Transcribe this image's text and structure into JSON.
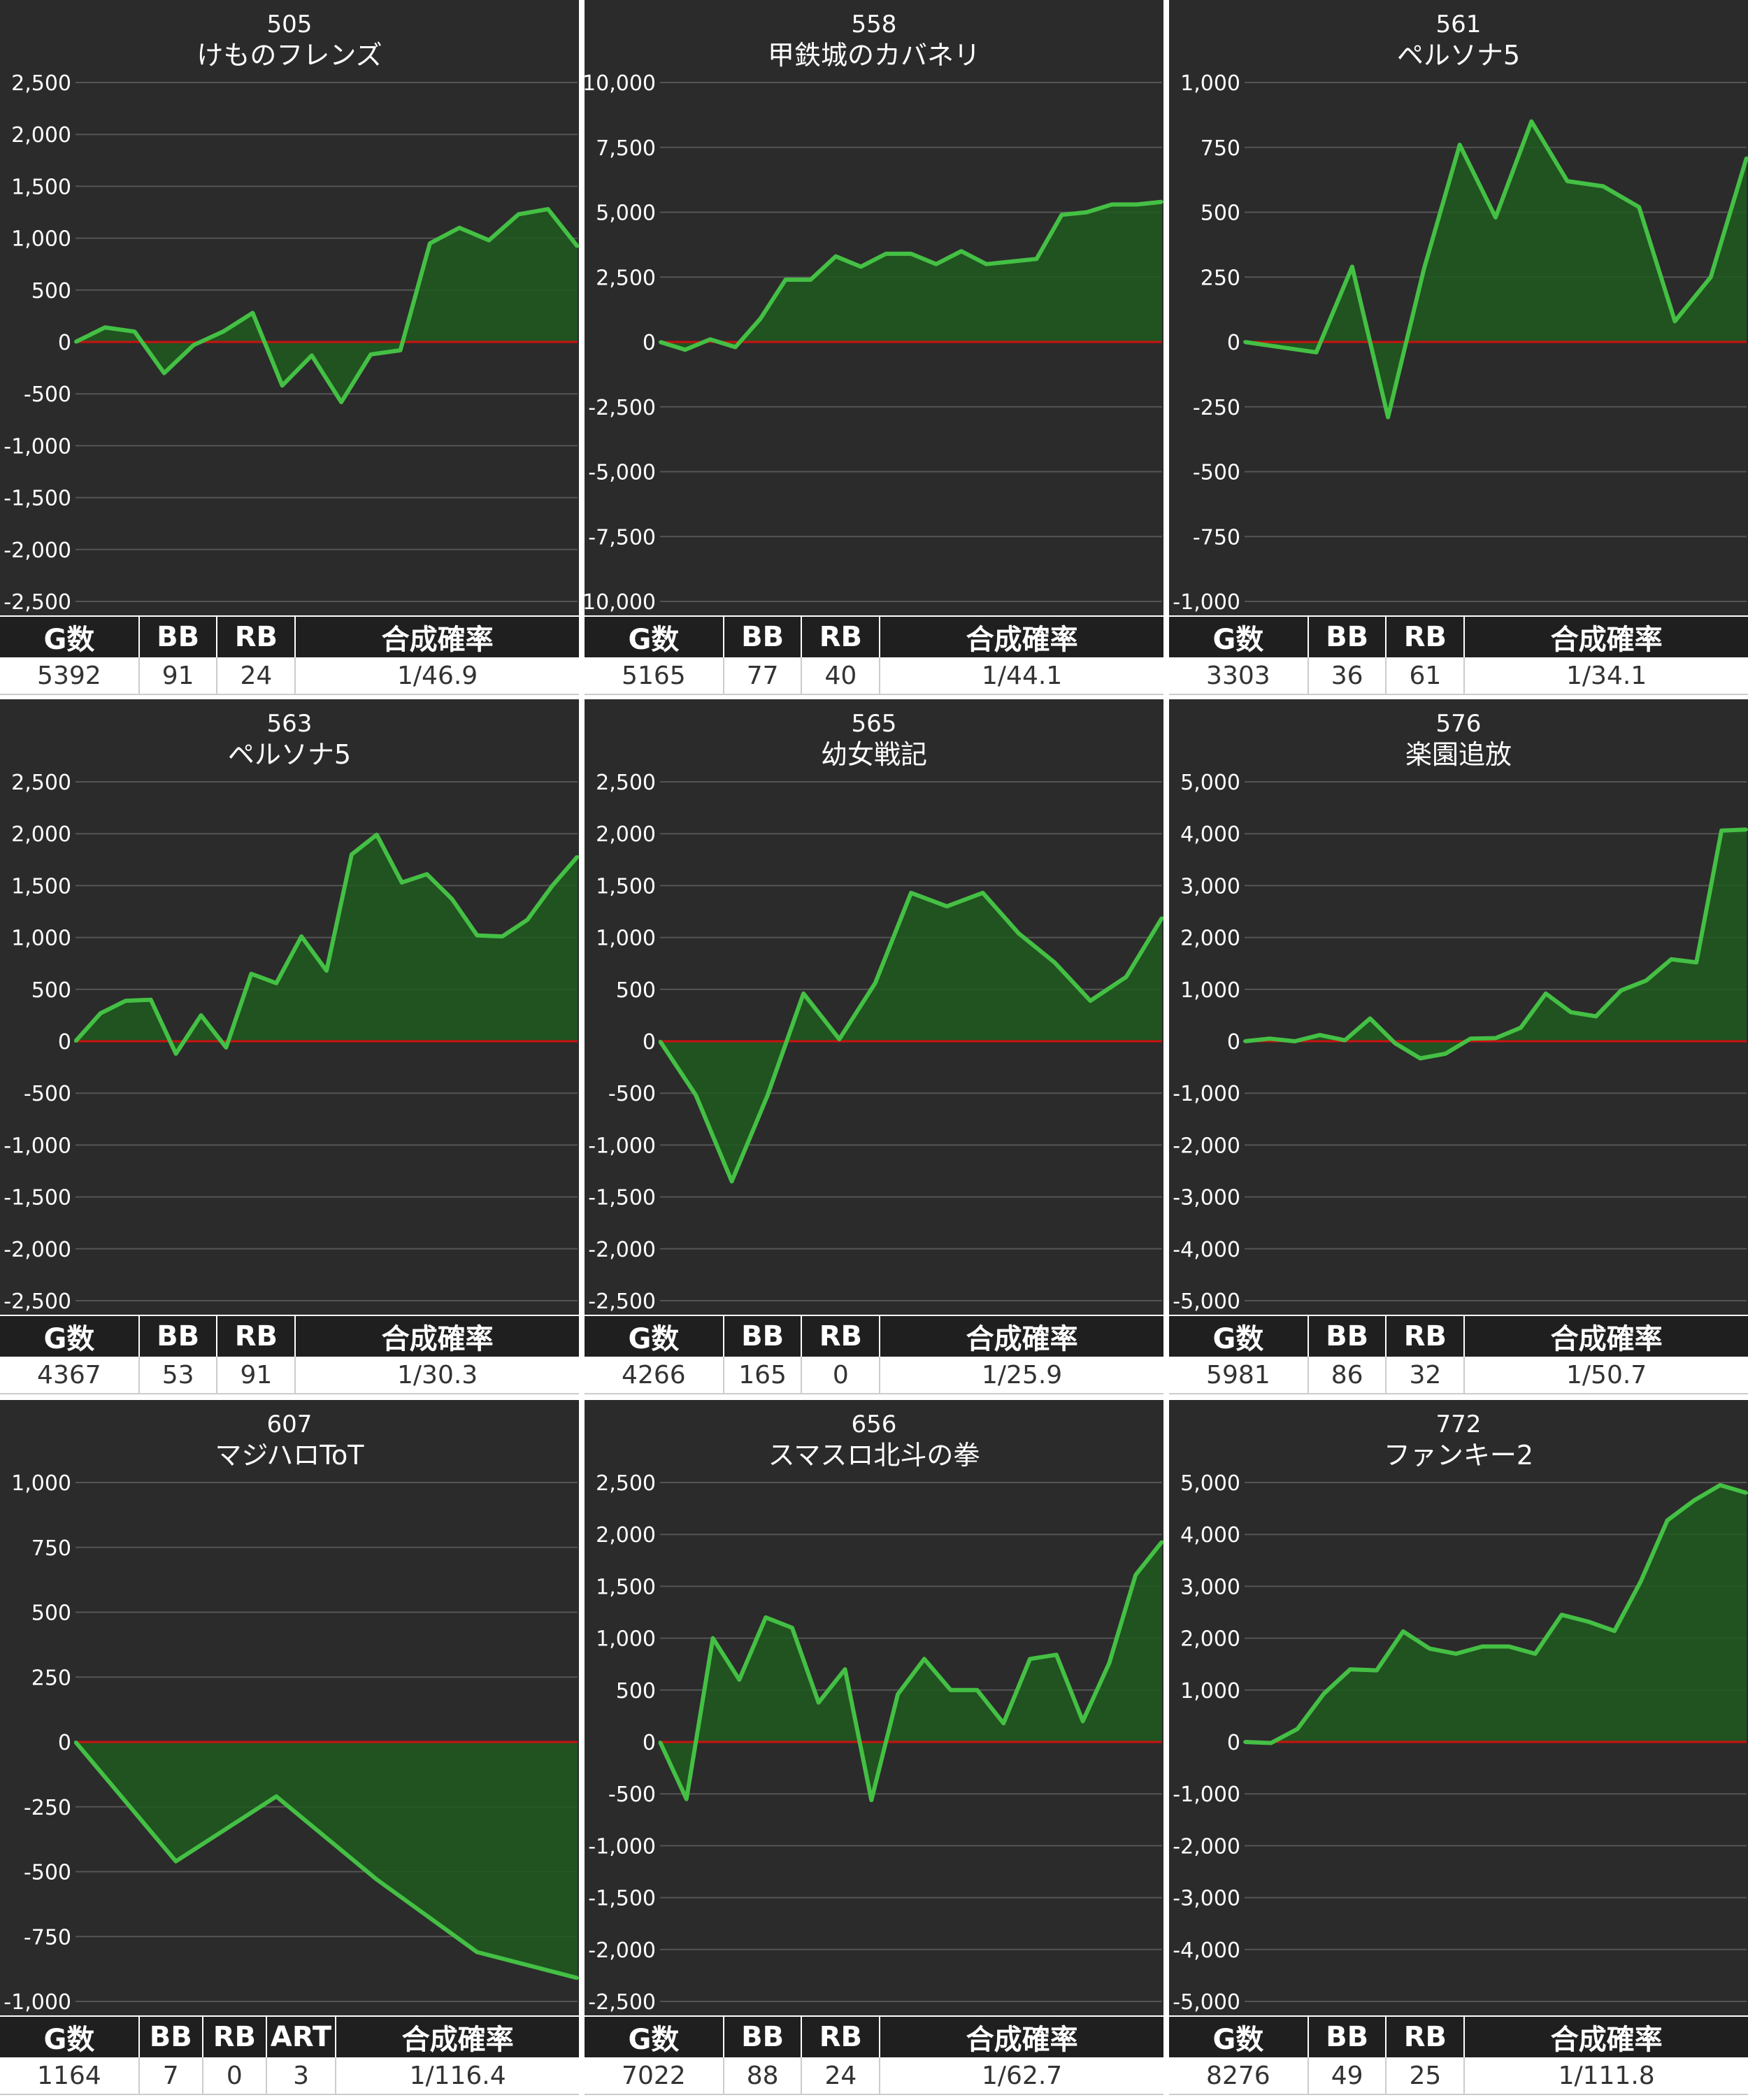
{
  "colors": {
    "background": "#2b2b2b",
    "grid": "#555555",
    "zero_line": "#cc1111",
    "line": "#44c044",
    "fill": "#1f5a1f",
    "label": "#ffffff"
  },
  "panels": [
    {
      "id": "505",
      "name": "けものフレンズ",
      "stats": {
        "headers": [
          "G数",
          "BB",
          "RB",
          "合成確率"
        ],
        "values": [
          "5392",
          "91",
          "24",
          "1/46.9"
        ]
      },
      "chart_data": {
        "type": "area",
        "ylim": [
          -2500,
          2500
        ],
        "yticks": [
          {
            "v": 2500,
            "l": "2,500"
          },
          {
            "v": 2000,
            "l": "2,000"
          },
          {
            "v": 1500,
            "l": "1,500"
          },
          {
            "v": 1000,
            "l": "1,000"
          },
          {
            "v": 500,
            "l": "500"
          },
          {
            "v": 0,
            "l": "0"
          },
          {
            "v": -500,
            "l": "-500"
          },
          {
            "v": -1000,
            "l": "-1,000"
          },
          {
            "v": -1500,
            "l": "-1,500"
          },
          {
            "v": -2000,
            "l": "-2,000"
          },
          {
            "v": -2500,
            "l": "-2,500"
          }
        ],
        "values": [
          0,
          140,
          100,
          -300,
          -30,
          100,
          280,
          -420,
          -130,
          -580,
          -120,
          -80,
          950,
          1100,
          980,
          1230,
          1280,
          920
        ]
      }
    },
    {
      "id": "558",
      "name": "甲鉄城のカバネリ",
      "stats": {
        "headers": [
          "G数",
          "BB",
          "RB",
          "合成確率"
        ],
        "values": [
          "5165",
          "77",
          "40",
          "1/44.1"
        ]
      },
      "chart_data": {
        "type": "area",
        "ylim": [
          -10000,
          10000
        ],
        "yticks": [
          {
            "v": 10000,
            "l": "10,000"
          },
          {
            "v": 7500,
            "l": "7,500"
          },
          {
            "v": 5000,
            "l": "5,000"
          },
          {
            "v": 2500,
            "l": "2,500"
          },
          {
            "v": 0,
            "l": "0"
          },
          {
            "v": -2500,
            "l": "-2,500"
          },
          {
            "v": -5000,
            "l": "-5,000"
          },
          {
            "v": -7500,
            "l": "-7,500"
          },
          {
            "v": -10000,
            "l": "-10,000"
          }
        ],
        "values": [
          0,
          -300,
          100,
          -200,
          900,
          2400,
          2400,
          3300,
          2900,
          3400,
          3400,
          3000,
          3500,
          3000,
          3100,
          3200,
          4900,
          5000,
          5300,
          5300,
          5400
        ]
      }
    },
    {
      "id": "561",
      "name": "ペルソナ5",
      "stats": {
        "headers": [
          "G数",
          "BB",
          "RB",
          "合成確率"
        ],
        "values": [
          "3303",
          "36",
          "61",
          "1/34.1"
        ]
      },
      "chart_data": {
        "type": "area",
        "ylim": [
          -1000,
          1000
        ],
        "yticks": [
          {
            "v": 1000,
            "l": "1,000"
          },
          {
            "v": 750,
            "l": "750"
          },
          {
            "v": 500,
            "l": "500"
          },
          {
            "v": 250,
            "l": "250"
          },
          {
            "v": 0,
            "l": "0"
          },
          {
            "v": -250,
            "l": "-250"
          },
          {
            "v": -500,
            "l": "-500"
          },
          {
            "v": -750,
            "l": "-750"
          },
          {
            "v": -1000,
            "l": "-1,000"
          }
        ],
        "values": [
          0,
          -20,
          -40,
          290,
          -290,
          280,
          760,
          480,
          850,
          620,
          600,
          520,
          80,
          250,
          710
        ]
      }
    },
    {
      "id": "563",
      "name": "ペルソナ5",
      "stats": {
        "headers": [
          "G数",
          "BB",
          "RB",
          "合成確率"
        ],
        "values": [
          "4367",
          "53",
          "91",
          "1/30.3"
        ]
      },
      "chart_data": {
        "type": "area",
        "ylim": [
          -2500,
          2500
        ],
        "yticks": [
          {
            "v": 2500,
            "l": "2,500"
          },
          {
            "v": 2000,
            "l": "2,000"
          },
          {
            "v": 1500,
            "l": "1,500"
          },
          {
            "v": 1000,
            "l": "1,000"
          },
          {
            "v": 500,
            "l": "500"
          },
          {
            "v": 0,
            "l": "0"
          },
          {
            "v": -500,
            "l": "-500"
          },
          {
            "v": -1000,
            "l": "-1,000"
          },
          {
            "v": -1500,
            "l": "-1,500"
          },
          {
            "v": -2000,
            "l": "-2,000"
          },
          {
            "v": -2500,
            "l": "-2,500"
          }
        ],
        "values": [
          0,
          270,
          390,
          400,
          -120,
          250,
          -60,
          650,
          560,
          1010,
          680,
          1800,
          1990,
          1530,
          1610,
          1370,
          1020,
          1010,
          1170,
          1500,
          1780
        ]
      }
    },
    {
      "id": "565",
      "name": "幼女戦記",
      "stats": {
        "headers": [
          "G数",
          "BB",
          "RB",
          "合成確率"
        ],
        "values": [
          "4266",
          "165",
          "0",
          "1/25.9"
        ]
      },
      "chart_data": {
        "type": "area",
        "ylim": [
          -2500,
          2500
        ],
        "yticks": [
          {
            "v": 2500,
            "l": "2,500"
          },
          {
            "v": 2000,
            "l": "2,000"
          },
          {
            "v": 1500,
            "l": "1,500"
          },
          {
            "v": 1000,
            "l": "1,000"
          },
          {
            "v": 500,
            "l": "500"
          },
          {
            "v": 0,
            "l": "0"
          },
          {
            "v": -500,
            "l": "-500"
          },
          {
            "v": -1000,
            "l": "-1,000"
          },
          {
            "v": -1500,
            "l": "-1,500"
          },
          {
            "v": -2000,
            "l": "-2,000"
          },
          {
            "v": -2500,
            "l": "-2,500"
          }
        ],
        "values": [
          0,
          -520,
          -1350,
          -520,
          460,
          20,
          560,
          1430,
          1300,
          1430,
          1040,
          760,
          390,
          620,
          1190
        ]
      }
    },
    {
      "id": "576",
      "name": "楽園追放",
      "stats": {
        "headers": [
          "G数",
          "BB",
          "RB",
          "合成確率"
        ],
        "values": [
          "5981",
          "86",
          "32",
          "1/50.7"
        ]
      },
      "chart_data": {
        "type": "area",
        "ylim": [
          -5000,
          5000
        ],
        "yticks": [
          {
            "v": 5000,
            "l": "5,000"
          },
          {
            "v": 4000,
            "l": "4,000"
          },
          {
            "v": 3000,
            "l": "3,000"
          },
          {
            "v": 2000,
            "l": "2,000"
          },
          {
            "v": 1000,
            "l": "1,000"
          },
          {
            "v": 0,
            "l": "0"
          },
          {
            "v": -1000,
            "l": "-1,000"
          },
          {
            "v": -2000,
            "l": "-2,000"
          },
          {
            "v": -3000,
            "l": "-3,000"
          },
          {
            "v": -4000,
            "l": "-4,000"
          },
          {
            "v": -5000,
            "l": "-5,000"
          }
        ],
        "values": [
          0,
          50,
          0,
          120,
          20,
          440,
          -40,
          -330,
          -240,
          50,
          60,
          260,
          920,
          560,
          480,
          980,
          1170,
          1580,
          1520,
          4060,
          4080
        ]
      }
    },
    {
      "id": "607",
      "name": "マジハロToT",
      "stats": {
        "headers": [
          "G数",
          "BB",
          "RB",
          "ART",
          "合成確率"
        ],
        "values": [
          "1164",
          "7",
          "0",
          "3",
          "1/116.4"
        ]
      },
      "chart_data": {
        "type": "area",
        "ylim": [
          -1000,
          1000
        ],
        "yticks": [
          {
            "v": 1000,
            "l": "1,000"
          },
          {
            "v": 750,
            "l": "750"
          },
          {
            "v": 500,
            "l": "500"
          },
          {
            "v": 250,
            "l": "250"
          },
          {
            "v": 0,
            "l": "0"
          },
          {
            "v": -250,
            "l": "-250"
          },
          {
            "v": -500,
            "l": "-500"
          },
          {
            "v": -750,
            "l": "-750"
          },
          {
            "v": -1000,
            "l": "-1,000"
          }
        ],
        "values": [
          0,
          -460,
          -210,
          -530,
          -810,
          -910
        ]
      }
    },
    {
      "id": "656",
      "name": "スマスロ北斗の拳",
      "stats": {
        "headers": [
          "G数",
          "BB",
          "RB",
          "合成確率"
        ],
        "values": [
          "7022",
          "88",
          "24",
          "1/62.7"
        ]
      },
      "chart_data": {
        "type": "area",
        "ylim": [
          -2500,
          2500
        ],
        "yticks": [
          {
            "v": 2500,
            "l": "2,500"
          },
          {
            "v": 2000,
            "l": "2,000"
          },
          {
            "v": 1500,
            "l": "1,500"
          },
          {
            "v": 1000,
            "l": "1,000"
          },
          {
            "v": 500,
            "l": "500"
          },
          {
            "v": 0,
            "l": "0"
          },
          {
            "v": -500,
            "l": "-500"
          },
          {
            "v": -1000,
            "l": "-1,000"
          },
          {
            "v": -1500,
            "l": "-1,500"
          },
          {
            "v": -2000,
            "l": "-2,000"
          },
          {
            "v": -2500,
            "l": "-2,500"
          }
        ],
        "values": [
          0,
          -550,
          1000,
          600,
          1200,
          1100,
          380,
          700,
          -560,
          460,
          800,
          500,
          500,
          180,
          800,
          840,
          200,
          760,
          1610,
          1930
        ]
      }
    },
    {
      "id": "772",
      "name": "ファンキー2",
      "stats": {
        "headers": [
          "G数",
          "BB",
          "RB",
          "合成確率"
        ],
        "values": [
          "8276",
          "49",
          "25",
          "1/111.8"
        ]
      },
      "chart_data": {
        "type": "area",
        "ylim": [
          -5000,
          5000
        ],
        "yticks": [
          {
            "v": 5000,
            "l": "5,000"
          },
          {
            "v": 4000,
            "l": "4,000"
          },
          {
            "v": 3000,
            "l": "3,000"
          },
          {
            "v": 2000,
            "l": "2,000"
          },
          {
            "v": 1000,
            "l": "1,000"
          },
          {
            "v": 0,
            "l": "0"
          },
          {
            "v": -1000,
            "l": "-1,000"
          },
          {
            "v": -2000,
            "l": "-2,000"
          },
          {
            "v": -3000,
            "l": "-3,000"
          },
          {
            "v": -4000,
            "l": "-4,000"
          },
          {
            "v": -5000,
            "l": "-5,000"
          }
        ],
        "values": [
          0,
          -20,
          250,
          930,
          1400,
          1380,
          2130,
          1800,
          1700,
          1840,
          1840,
          1700,
          2450,
          2320,
          2140,
          3100,
          4270,
          4650,
          4950,
          4800
        ]
      }
    }
  ]
}
